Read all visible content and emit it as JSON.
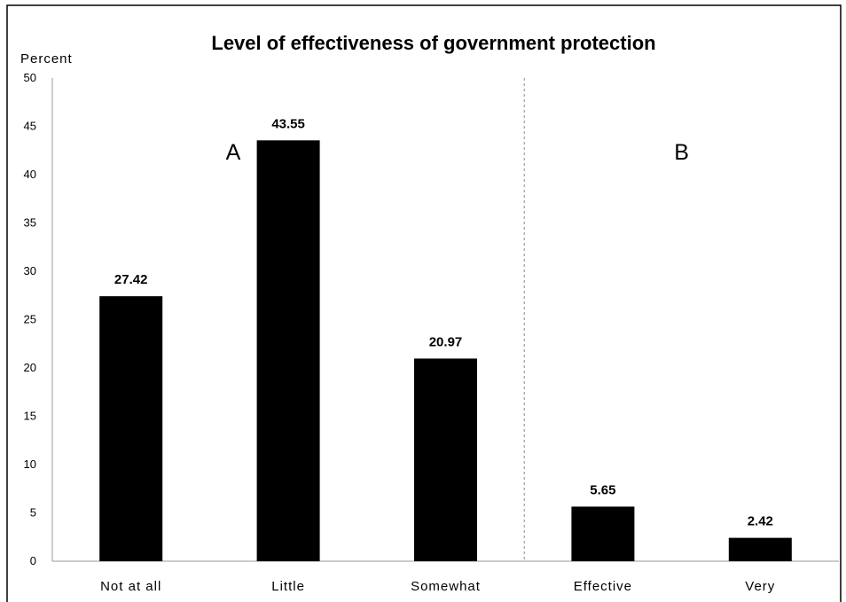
{
  "chart_data": {
    "type": "bar",
    "title": "Level of effectiveness of government protection",
    "ylabel": "Percent",
    "xlabel": "",
    "categories": [
      "Not at all",
      "Little",
      "Somewhat",
      "Effective",
      "Very"
    ],
    "values": [
      27.42,
      43.55,
      20.97,
      5.65,
      2.42
    ],
    "data_labels": [
      "27.42",
      "43.55",
      "20.97",
      "5.65",
      "2.42"
    ],
    "ylim": [
      0,
      50
    ],
    "yticks": [
      0,
      5,
      10,
      15,
      20,
      25,
      30,
      35,
      40,
      45,
      50
    ],
    "grid": false,
    "legend": "none",
    "bar_color": "#000000",
    "group_divider": {
      "after_category_index": 2,
      "style": "dashed",
      "color": "#888888"
    },
    "group_labels": [
      {
        "text": "A",
        "near_category_index": 0.65
      },
      {
        "text": "B",
        "near_category_index": 3.5
      }
    ]
  }
}
